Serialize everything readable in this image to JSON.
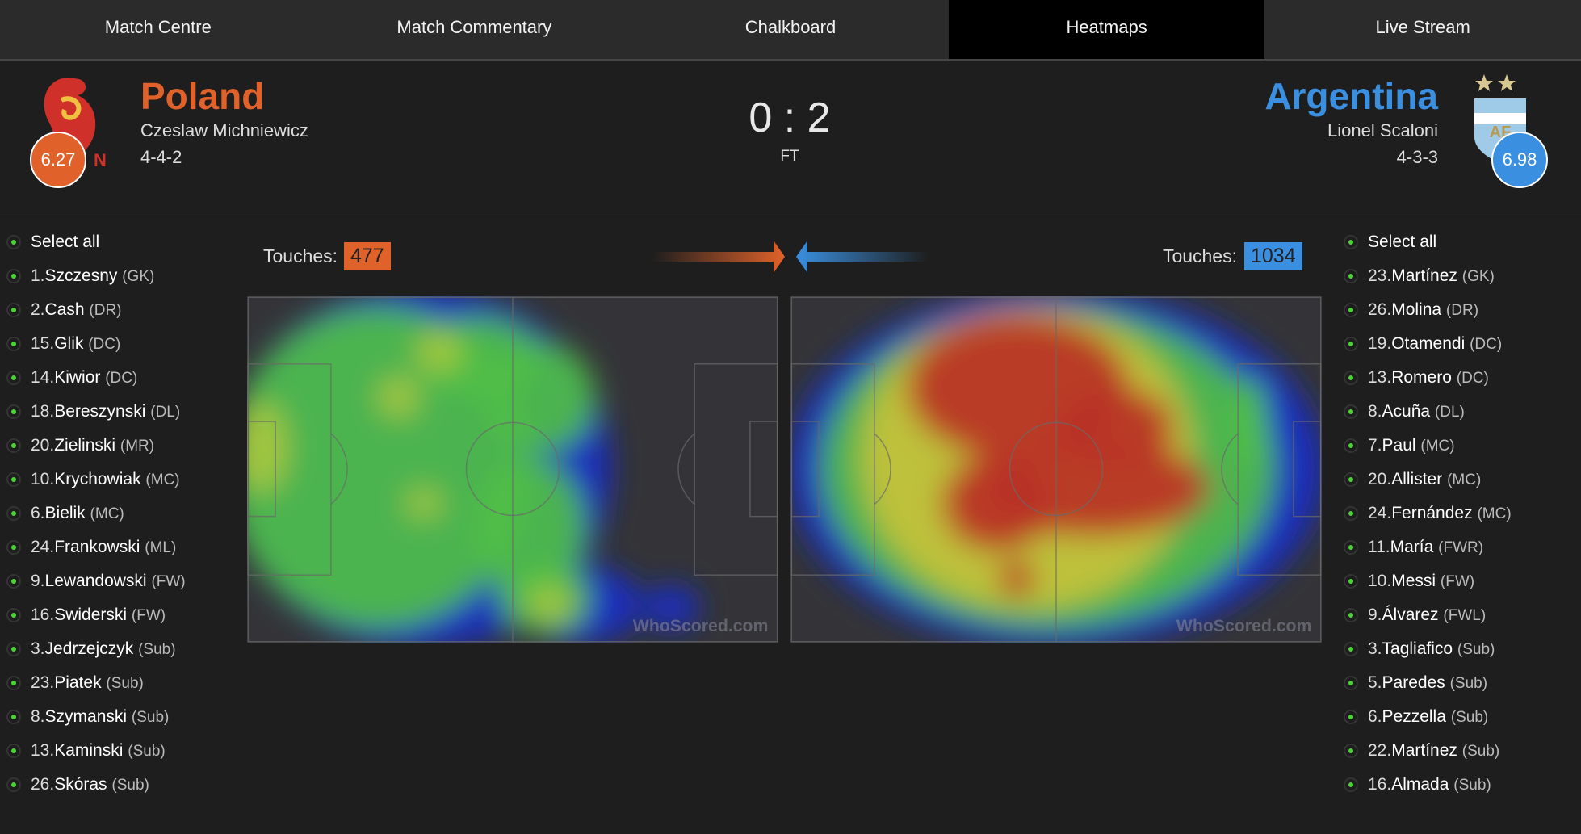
{
  "nav": {
    "tabs": [
      "Match Centre",
      "Match Commentary",
      "Chalkboard",
      "Heatmaps",
      "Live Stream"
    ],
    "active": 3
  },
  "home": {
    "name": "Poland",
    "coach": "Czeslaw Michniewicz",
    "formation": "4-4-2",
    "rating": "6.27",
    "touches_label": "Touches:",
    "touches": "477",
    "select_all": "Select all",
    "players": [
      {
        "number": "1.",
        "name": "Szczesny",
        "position": "(GK)"
      },
      {
        "number": "2.",
        "name": "Cash",
        "position": "(DR)"
      },
      {
        "number": "15.",
        "name": "Glik",
        "position": "(DC)"
      },
      {
        "number": "14.",
        "name": "Kiwior",
        "position": "(DC)"
      },
      {
        "number": "18.",
        "name": "Bereszynski",
        "position": "(DL)"
      },
      {
        "number": "20.",
        "name": "Zielinski",
        "position": "(MR)"
      },
      {
        "number": "10.",
        "name": "Krychowiak",
        "position": "(MC)"
      },
      {
        "number": "6.",
        "name": "Bielik",
        "position": "(MC)"
      },
      {
        "number": "24.",
        "name": "Frankowski",
        "position": "(ML)"
      },
      {
        "number": "9.",
        "name": "Lewandowski",
        "position": "(FW)"
      },
      {
        "number": "16.",
        "name": "Swiderski",
        "position": "(FW)"
      },
      {
        "number": "3.",
        "name": "Jedrzejczyk",
        "position": "(Sub)"
      },
      {
        "number": "23.",
        "name": "Piatek",
        "position": "(Sub)"
      },
      {
        "number": "8.",
        "name": "Szymanski",
        "position": "(Sub)"
      },
      {
        "number": "13.",
        "name": "Kaminski",
        "position": "(Sub)"
      },
      {
        "number": "26.",
        "name": "Skóras",
        "position": "(Sub)"
      }
    ]
  },
  "away": {
    "name": "Argentina",
    "coach": "Lionel Scaloni",
    "formation": "4-3-3",
    "rating": "6.98",
    "touches_label": "Touches:",
    "touches": "1034",
    "select_all": "Select all",
    "players": [
      {
        "number": "23.",
        "name": "Martínez",
        "position": "(GK)"
      },
      {
        "number": "26.",
        "name": "Molina",
        "position": "(DR)"
      },
      {
        "number": "19.",
        "name": "Otamendi",
        "position": "(DC)"
      },
      {
        "number": "13.",
        "name": "Romero",
        "position": "(DC)"
      },
      {
        "number": "8.",
        "name": "Acuña",
        "position": "(DL)"
      },
      {
        "number": "7.",
        "name": "Paul",
        "position": "(MC)"
      },
      {
        "number": "20.",
        "name": "Allister",
        "position": "(MC)"
      },
      {
        "number": "24.",
        "name": "Fernández",
        "position": "(MC)"
      },
      {
        "number": "11.",
        "name": "María",
        "position": "(FWR)"
      },
      {
        "number": "10.",
        "name": "Messi",
        "position": "(FW)"
      },
      {
        "number": "9.",
        "name": "Álvarez",
        "position": "(FWL)"
      },
      {
        "number": "3.",
        "name": "Tagliafico",
        "position": "(Sub)"
      },
      {
        "number": "5.",
        "name": "Paredes",
        "position": "(Sub)"
      },
      {
        "number": "6.",
        "name": "Pezzella",
        "position": "(Sub)"
      },
      {
        "number": "22.",
        "name": "Martínez",
        "position": "(Sub)"
      },
      {
        "number": "16.",
        "name": "Almada",
        "position": "(Sub)"
      }
    ]
  },
  "score": "0 : 2",
  "status": "FT",
  "watermark": "WhoScored.com"
}
